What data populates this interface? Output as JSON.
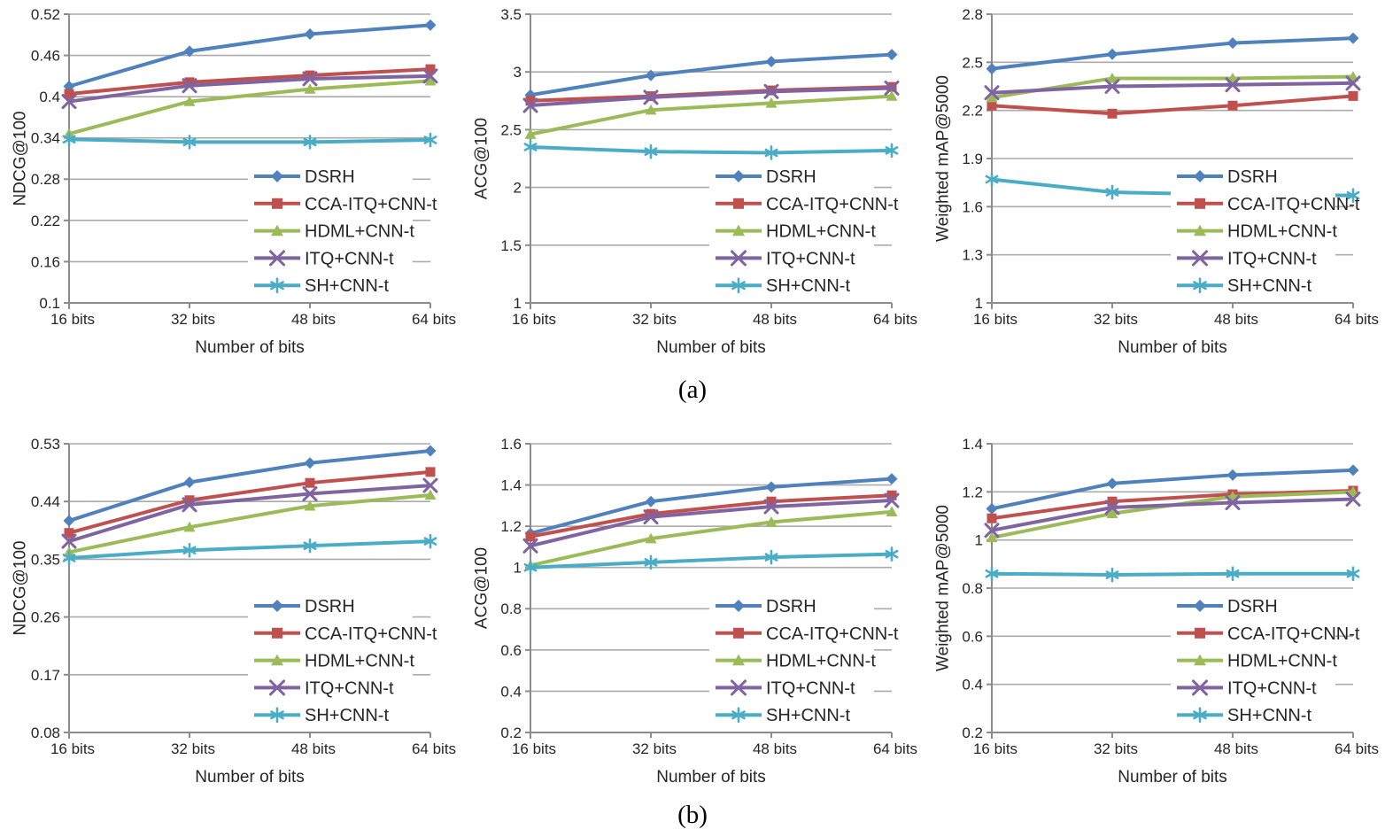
{
  "figure": {
    "caption_a": "(a)",
    "caption_b": "(b)"
  },
  "style": {
    "series": [
      {
        "name": "DSRH",
        "color": "#4F81BD",
        "marker": "diamond"
      },
      {
        "name": "CCA-ITQ+CNN-t",
        "color": "#C0504D",
        "marker": "square"
      },
      {
        "name": "HDML+CNN-t",
        "color": "#9BBB59",
        "marker": "triangle"
      },
      {
        "name": "ITQ+CNN-t",
        "color": "#8064A2",
        "marker": "x"
      },
      {
        "name": "SH+CNN-t",
        "color": "#4BACC6",
        "marker": "asterisk"
      }
    ],
    "grid_color": "#ABABAB",
    "axis_color": "#8C8C8C",
    "text_color": "#262626",
    "legend_bg": "#FFFFFF"
  },
  "chart_data": [
    {
      "type": "line",
      "group": "a",
      "title": "",
      "ylabel": "NDCG@100",
      "xlabel": "Number of bits",
      "categories": [
        "16 bits",
        "32 bits",
        "48 bits",
        "64 bits"
      ],
      "ylim": [
        0.1,
        0.52
      ],
      "yticks": [
        0.1,
        0.16,
        0.22,
        0.28,
        0.34,
        0.4,
        0.46,
        0.52
      ],
      "ytick_labels": [
        "0.1",
        "0.16",
        "0.22",
        "0.28",
        "0.34",
        "0.4",
        "0.46",
        "0.52"
      ],
      "grid": true,
      "legend_position": "lower-right",
      "series": [
        {
          "name": "DSRH",
          "values": [
            0.415,
            0.466,
            0.491,
            0.504
          ]
        },
        {
          "name": "CCA-ITQ+CNN-t",
          "values": [
            0.404,
            0.421,
            0.431,
            0.44
          ]
        },
        {
          "name": "HDML+CNN-t",
          "values": [
            0.346,
            0.393,
            0.411,
            0.423
          ]
        },
        {
          "name": "ITQ+CNN-t",
          "values": [
            0.393,
            0.416,
            0.426,
            0.43
          ]
        },
        {
          "name": "SH+CNN-t",
          "values": [
            0.338,
            0.334,
            0.334,
            0.337
          ]
        }
      ]
    },
    {
      "type": "line",
      "group": "a",
      "title": "",
      "ylabel": "ACG@100",
      "xlabel": "Number of bits",
      "categories": [
        "16 bits",
        "32 bits",
        "48 bits",
        "64 bits"
      ],
      "ylim": [
        1,
        3.5
      ],
      "yticks": [
        1,
        1.5,
        2,
        2.5,
        3,
        3.5
      ],
      "ytick_labels": [
        "1",
        "1.5",
        "2",
        "2.5",
        "3",
        "3.5"
      ],
      "grid": true,
      "legend_position": "lower-right",
      "series": [
        {
          "name": "DSRH",
          "values": [
            2.8,
            2.97,
            3.09,
            3.15
          ]
        },
        {
          "name": "CCA-ITQ+CNN-t",
          "values": [
            2.75,
            2.79,
            2.84,
            2.87
          ]
        },
        {
          "name": "HDML+CNN-t",
          "values": [
            2.46,
            2.67,
            2.73,
            2.79
          ]
        },
        {
          "name": "ITQ+CNN-t",
          "values": [
            2.71,
            2.78,
            2.83,
            2.86
          ]
        },
        {
          "name": "SH+CNN-t",
          "values": [
            2.35,
            2.31,
            2.3,
            2.32
          ]
        }
      ]
    },
    {
      "type": "line",
      "group": "a",
      "title": "",
      "ylabel": "Weighted mAP@5000",
      "xlabel": "Number of bits",
      "categories": [
        "16 bits",
        "32 bits",
        "48 bits",
        "64 bits"
      ],
      "ylim": [
        1,
        2.8
      ],
      "yticks": [
        1,
        1.3,
        1.6,
        1.9,
        2.2,
        2.5,
        2.8
      ],
      "ytick_labels": [
        "1",
        "1.3",
        "1.6",
        "1.9",
        "2.2",
        "2.5",
        "2.8"
      ],
      "grid": true,
      "legend_position": "lower-right",
      "series": [
        {
          "name": "DSRH",
          "values": [
            2.46,
            2.55,
            2.62,
            2.65
          ]
        },
        {
          "name": "CCA-ITQ+CNN-t",
          "values": [
            2.23,
            2.18,
            2.23,
            2.29
          ]
        },
        {
          "name": "HDML+CNN-t",
          "values": [
            2.28,
            2.4,
            2.4,
            2.41
          ]
        },
        {
          "name": "ITQ+CNN-t",
          "values": [
            2.31,
            2.35,
            2.36,
            2.37
          ]
        },
        {
          "name": "SH+CNN-t",
          "values": [
            1.77,
            1.69,
            1.675,
            1.67
          ]
        }
      ]
    },
    {
      "type": "line",
      "group": "b",
      "title": "",
      "ylabel": "NDCG@100",
      "xlabel": "Number of bits",
      "categories": [
        "16 bits",
        "32 bits",
        "48 bits",
        "64 bits"
      ],
      "ylim": [
        0.08,
        0.53
      ],
      "yticks": [
        0.08,
        0.17,
        0.26,
        0.35,
        0.44,
        0.53
      ],
      "ytick_labels": [
        "0.08",
        "0.17",
        "0.26",
        "0.35",
        "0.44",
        "0.53"
      ],
      "grid": true,
      "legend_position": "lower-right",
      "series": [
        {
          "name": "DSRH",
          "values": [
            0.41,
            0.47,
            0.5,
            0.519
          ]
        },
        {
          "name": "CCA-ITQ+CNN-t",
          "values": [
            0.391,
            0.442,
            0.469,
            0.486
          ]
        },
        {
          "name": "HDML+CNN-t",
          "values": [
            0.361,
            0.4,
            0.433,
            0.45
          ]
        },
        {
          "name": "ITQ+CNN-t",
          "values": [
            0.378,
            0.435,
            0.452,
            0.465
          ]
        },
        {
          "name": "SH+CNN-t",
          "values": [
            0.352,
            0.364,
            0.371,
            0.378
          ]
        }
      ]
    },
    {
      "type": "line",
      "group": "b",
      "title": "",
      "ylabel": "ACG@100",
      "xlabel": "Number of bits",
      "categories": [
        "16 bits",
        "32 bits",
        "48 bits",
        "64 bits"
      ],
      "ylim": [
        0.2,
        1.6
      ],
      "yticks": [
        0.2,
        0.4,
        0.6,
        0.8,
        1,
        1.2,
        1.4,
        1.6
      ],
      "ytick_labels": [
        "0.2",
        "0.4",
        "0.6",
        "0.8",
        "1",
        "1.2",
        "1.4",
        "1.6"
      ],
      "grid": true,
      "legend_position": "lower-right",
      "series": [
        {
          "name": "DSRH",
          "values": [
            1.165,
            1.32,
            1.39,
            1.43
          ]
        },
        {
          "name": "CCA-ITQ+CNN-t",
          "values": [
            1.15,
            1.26,
            1.32,
            1.35
          ]
        },
        {
          "name": "HDML+CNN-t",
          "values": [
            1.01,
            1.14,
            1.22,
            1.27
          ]
        },
        {
          "name": "ITQ+CNN-t",
          "values": [
            1.105,
            1.245,
            1.295,
            1.325
          ]
        },
        {
          "name": "SH+CNN-t",
          "values": [
            1.0,
            1.025,
            1.05,
            1.065
          ]
        }
      ]
    },
    {
      "type": "line",
      "group": "b",
      "title": "",
      "ylabel": "Weighted mAP@5000",
      "xlabel": "Number of bits",
      "categories": [
        "16 bits",
        "32 bits",
        "48 bits",
        "64 bits"
      ],
      "ylim": [
        0.2,
        1.4
      ],
      "yticks": [
        0.2,
        0.4,
        0.6,
        0.8,
        1,
        1.2,
        1.4
      ],
      "ytick_labels": [
        "0.2",
        "0.4",
        "0.6",
        "0.8",
        "1",
        "1.2",
        "1.4"
      ],
      "grid": true,
      "legend_position": "lower-right",
      "series": [
        {
          "name": "DSRH",
          "values": [
            1.13,
            1.235,
            1.27,
            1.29
          ]
        },
        {
          "name": "CCA-ITQ+CNN-t",
          "values": [
            1.09,
            1.16,
            1.19,
            1.205
          ]
        },
        {
          "name": "HDML+CNN-t",
          "values": [
            1.01,
            1.11,
            1.18,
            1.2
          ]
        },
        {
          "name": "ITQ+CNN-t",
          "values": [
            1.04,
            1.135,
            1.155,
            1.17
          ]
        },
        {
          "name": "SH+CNN-t",
          "values": [
            0.86,
            0.855,
            0.86,
            0.86
          ]
        }
      ]
    }
  ]
}
